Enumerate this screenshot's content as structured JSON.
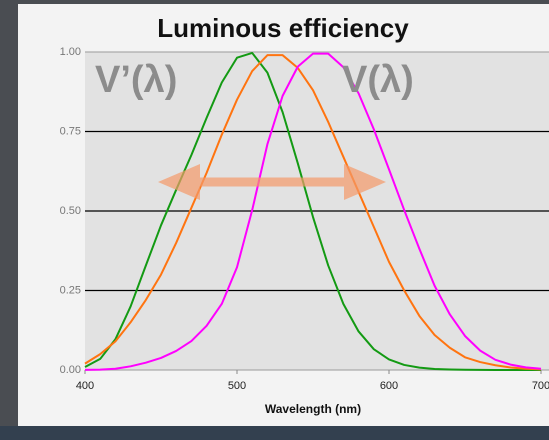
{
  "chart_data": {
    "type": "line",
    "title": "Luminous efficiency",
    "x_label": "Wavelength (nm)",
    "annotations": [
      "V’(λ)",
      "V(λ)"
    ],
    "x": [
      400,
      410,
      420,
      430,
      440,
      450,
      460,
      470,
      480,
      490,
      500,
      510,
      520,
      530,
      540,
      550,
      560,
      570,
      580,
      590,
      600,
      610,
      620,
      630,
      640,
      650,
      660,
      670,
      680,
      690,
      700
    ],
    "series": [
      {
        "color": "#139a13",
        "values": [
          0.0093,
          0.0348,
          0.0966,
          0.1998,
          0.3281,
          0.455,
          0.567,
          0.676,
          0.793,
          0.904,
          0.982,
          0.997,
          0.935,
          0.811,
          0.65,
          0.481,
          0.3288,
          0.2076,
          0.1212,
          0.0655,
          0.0332,
          0.0159,
          0.0074,
          0.0033,
          0.0015,
          0.0007,
          0.0003,
          0.0001,
          0.0001,
          0,
          0
        ]
      },
      {
        "color": "#ff7410",
        "values": [
          0.02,
          0.05,
          0.09,
          0.15,
          0.22,
          0.3,
          0.4,
          0.51,
          0.62,
          0.74,
          0.85,
          0.94,
          0.99,
          0.99,
          0.95,
          0.88,
          0.78,
          0.67,
          0.56,
          0.45,
          0.34,
          0.25,
          0.17,
          0.11,
          0.07,
          0.04,
          0.025,
          0.015,
          0.008,
          0.004,
          0.002
        ]
      },
      {
        "color": "#ff00ff",
        "values": [
          0.0004,
          0.0012,
          0.004,
          0.0116,
          0.023,
          0.038,
          0.06,
          0.091,
          0.139,
          0.208,
          0.323,
          0.503,
          0.71,
          0.862,
          0.954,
          0.995,
          0.995,
          0.952,
          0.87,
          0.757,
          0.631,
          0.503,
          0.381,
          0.265,
          0.175,
          0.107,
          0.061,
          0.032,
          0.017,
          0.0082,
          0.0041
        ]
      }
    ],
    "xlim": [
      400,
      700
    ],
    "xticks": [
      400,
      500,
      600,
      700
    ],
    "ylim": [
      0,
      1
    ],
    "yticks": [
      {
        "value": 0,
        "label": "0.00"
      },
      {
        "value": 0.25,
        "label": "0.25"
      },
      {
        "value": 0.5,
        "label": "0.50"
      },
      {
        "value": 0.75,
        "label": "0.75"
      },
      {
        "value": 1,
        "label": "1.00"
      }
    ],
    "grid": true
  }
}
